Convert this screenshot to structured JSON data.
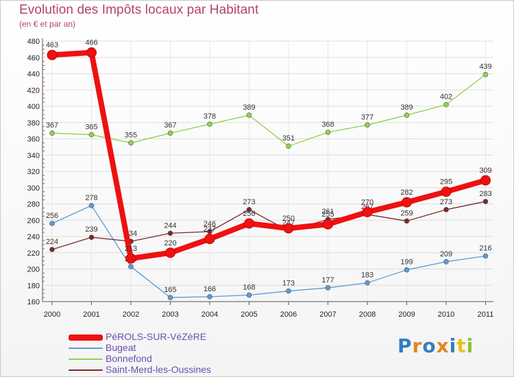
{
  "chart_data": {
    "type": "line",
    "title": "Evolution des Impôts locaux par Habitant",
    "subtitle": "(en € et par an)",
    "xlabel": "",
    "ylabel": "",
    "ylim": [
      160,
      480
    ],
    "yticks": [
      160,
      180,
      200,
      220,
      240,
      260,
      280,
      300,
      320,
      340,
      360,
      380,
      400,
      420,
      440,
      460,
      480
    ],
    "categories": [
      "2000",
      "2001",
      "2002",
      "2003",
      "2004",
      "2005",
      "2006",
      "2007",
      "2008",
      "2009",
      "2010",
      "2011"
    ],
    "series": [
      {
        "name": "Bonnefond",
        "color": "#8fd14f",
        "values": [
          367,
          365,
          355,
          367,
          378,
          389,
          351,
          368,
          377,
          389,
          402,
          439
        ]
      },
      {
        "name": "Bugeat",
        "color": "#5b9bd5",
        "values": [
          256,
          278,
          203,
          165,
          166,
          168,
          173,
          177,
          183,
          199,
          209,
          216
        ]
      },
      {
        "name": "Saint-Merd-les-Oussines",
        "color": "#7b2a2a",
        "values": [
          224,
          239,
          234,
          244,
          246,
          273,
          247,
          261,
          267,
          259,
          273,
          283
        ]
      },
      {
        "name": "PéROLS-SUR-VéZèRE",
        "color": "#ee1111",
        "values": [
          463,
          466,
          213,
          220,
          237,
          256,
          250,
          255,
          270,
          282,
          295,
          309
        ]
      }
    ]
  },
  "legend": {
    "items": [
      {
        "label": "PéROLS-SUR-VéZèRE",
        "color": "#ee1111"
      },
      {
        "label": "Bugeat",
        "color": "#5b9bd5"
      },
      {
        "label": "Bonnefond",
        "color": "#8fd14f"
      },
      {
        "label": "Saint-Merd-les-Oussines",
        "color": "#7b2a2a"
      }
    ]
  },
  "logo": {
    "text": "Proxiti"
  }
}
